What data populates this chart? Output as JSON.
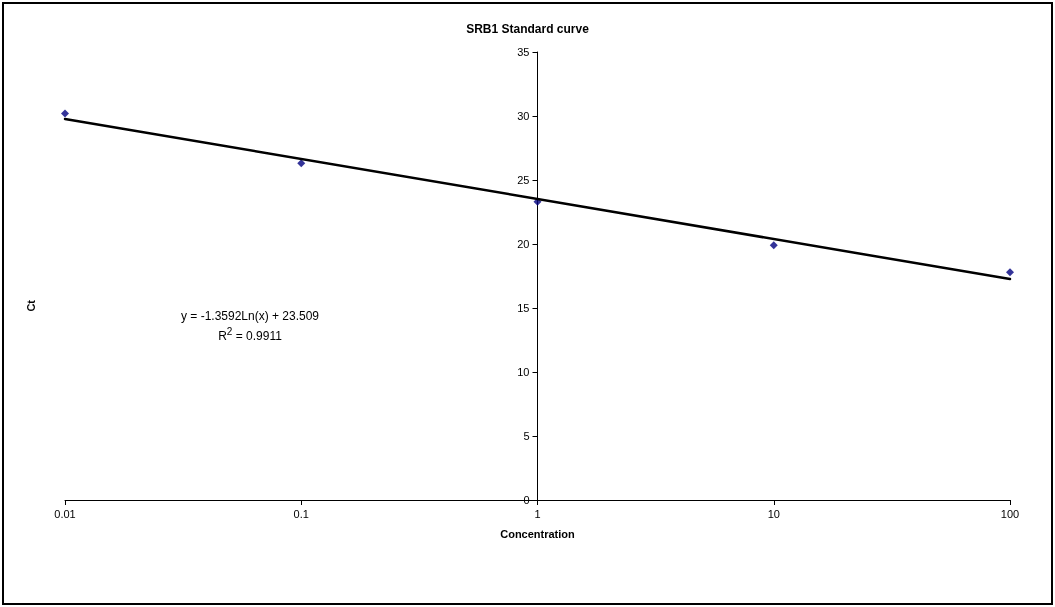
{
  "chart_data": {
    "type": "scatter",
    "title": "SRB1 Standard curve",
    "xlabel": "Concentration",
    "ylabel": "Ct",
    "log": "x",
    "xlim": [
      0.01,
      100
    ],
    "xticks": [
      0.01,
      0.1,
      1,
      10,
      100
    ],
    "ylim": [
      0,
      35
    ],
    "yticks": [
      0,
      5,
      10,
      15,
      20,
      25,
      30,
      35
    ],
    "grid": false,
    "series": [
      {
        "color": "#000080",
        "marker": "diamond",
        "x": [
          0.01,
          0.1,
          1,
          10,
          100
        ],
        "values": [
          30.2,
          26.3,
          23.3,
          19.9,
          17.8
        ]
      },
      {
        "type": "line",
        "color": "#000000",
        "marker": "none",
        "line_style": "solid",
        "x": [
          0.01,
          100
        ],
        "values": [
          29.77,
          17.26
        ]
      }
    ],
    "annotations": [
      "y = -1.3592Ln(x) + 23.509",
      "R$^{2}$ = 0.9911"
    ]
  }
}
